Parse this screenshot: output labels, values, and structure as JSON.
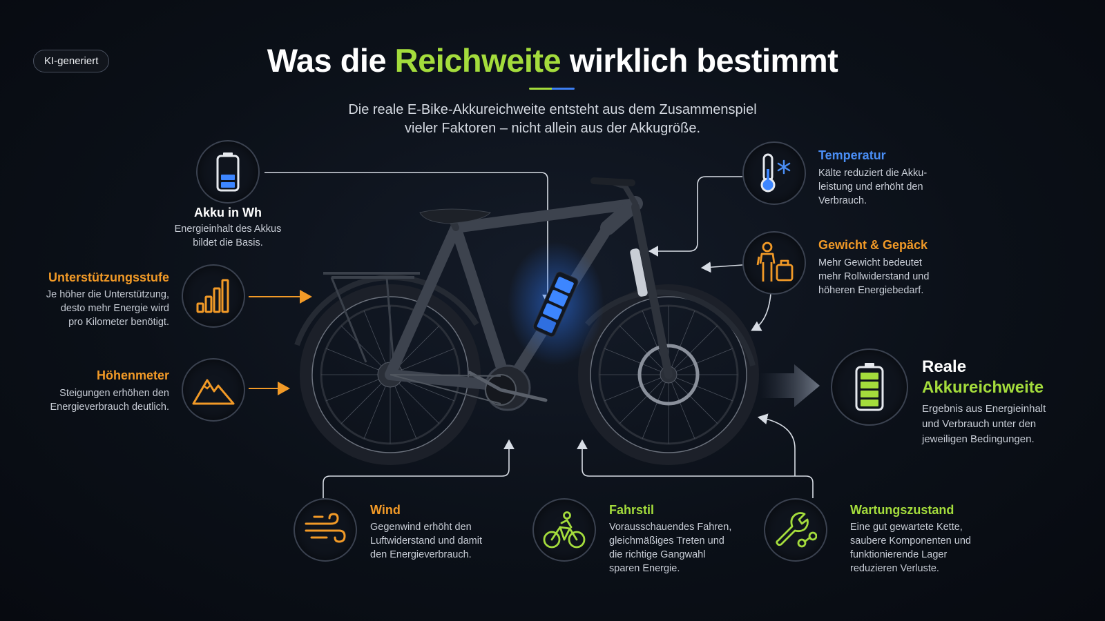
{
  "badge": "KI-generiert",
  "title": {
    "part1": "Was die ",
    "highlight": "Reichweite",
    "part2": " wirklich bestimmt"
  },
  "subtitle": {
    "line1": "Die reale E-Bike-Akkureichweite entsteht aus dem Zusammenspiel",
    "line2": "vieler Faktoren – nicht allein aus der Akkugröße."
  },
  "factors": {
    "akku": {
      "title": "Akku in Wh",
      "desc_line1": "Energieinhalt des Akkus",
      "desc_line2": "bildet die Basis.",
      "icon": "battery-icon"
    },
    "unterstuetzung": {
      "title": "Unterstützungsstufe",
      "desc_line1": "Je höher die Unterstützung,",
      "desc_line2": "desto mehr Energie wird",
      "desc_line3": "pro Kilometer benötigt.",
      "icon": "signal-bars-icon"
    },
    "hoehenmeter": {
      "title": "Höhenmeter",
      "desc_line1": "Steigungen erhöhen den",
      "desc_line2": "Energieverbrauch deutlich.",
      "icon": "mountain-icon"
    },
    "temperatur": {
      "title": "Temperatur",
      "desc_line1": "Kälte reduziert die Akku-",
      "desc_line2": "leistung und erhöht den",
      "desc_line3": "Verbrauch.",
      "icon": "thermometer-snowflake-icon"
    },
    "gewicht": {
      "title": "Gewicht & Gepäck",
      "desc_line1": "Mehr Gewicht bedeutet",
      "desc_line2": "mehr Rollwiderstand und",
      "desc_line3": "höheren Energiebedarf.",
      "icon": "person-luggage-icon"
    },
    "wind": {
      "title": "Wind",
      "desc_line1": "Gegenwind erhöht den",
      "desc_line2": "Luftwiderstand und damit",
      "desc_line3": "den Energieverbrauch.",
      "icon": "wind-icon"
    },
    "fahrstil": {
      "title": "Fahrstil",
      "desc_line1": "Vorausschauendes Fahren,",
      "desc_line2": "gleichmäßiges Treten und",
      "desc_line3": "die richtige Gangwahl",
      "desc_line4": "sparen Energie.",
      "icon": "cyclist-icon"
    },
    "wartung": {
      "title": "Wartungszustand",
      "desc_line1": "Eine gut gewartete Kette,",
      "desc_line2": "saubere Komponenten und",
      "desc_line3": "funktionierende Lager",
      "desc_line4": "reduzieren Verluste.",
      "icon": "wrench-chain-icon"
    }
  },
  "result": {
    "title_line1": "Reale",
    "title_line2": "Akkureichweite",
    "desc_line1": "Ergebnis aus Energieinhalt",
    "desc_line2": "und Verbrauch unter den",
    "desc_line3": "jeweiligen Bedingungen.",
    "icon": "full-battery-icon"
  },
  "colors": {
    "accent_green": "#a4dc3c",
    "accent_blue": "#4a8ef5",
    "accent_orange": "#f29a27",
    "background": "#0b1018"
  }
}
